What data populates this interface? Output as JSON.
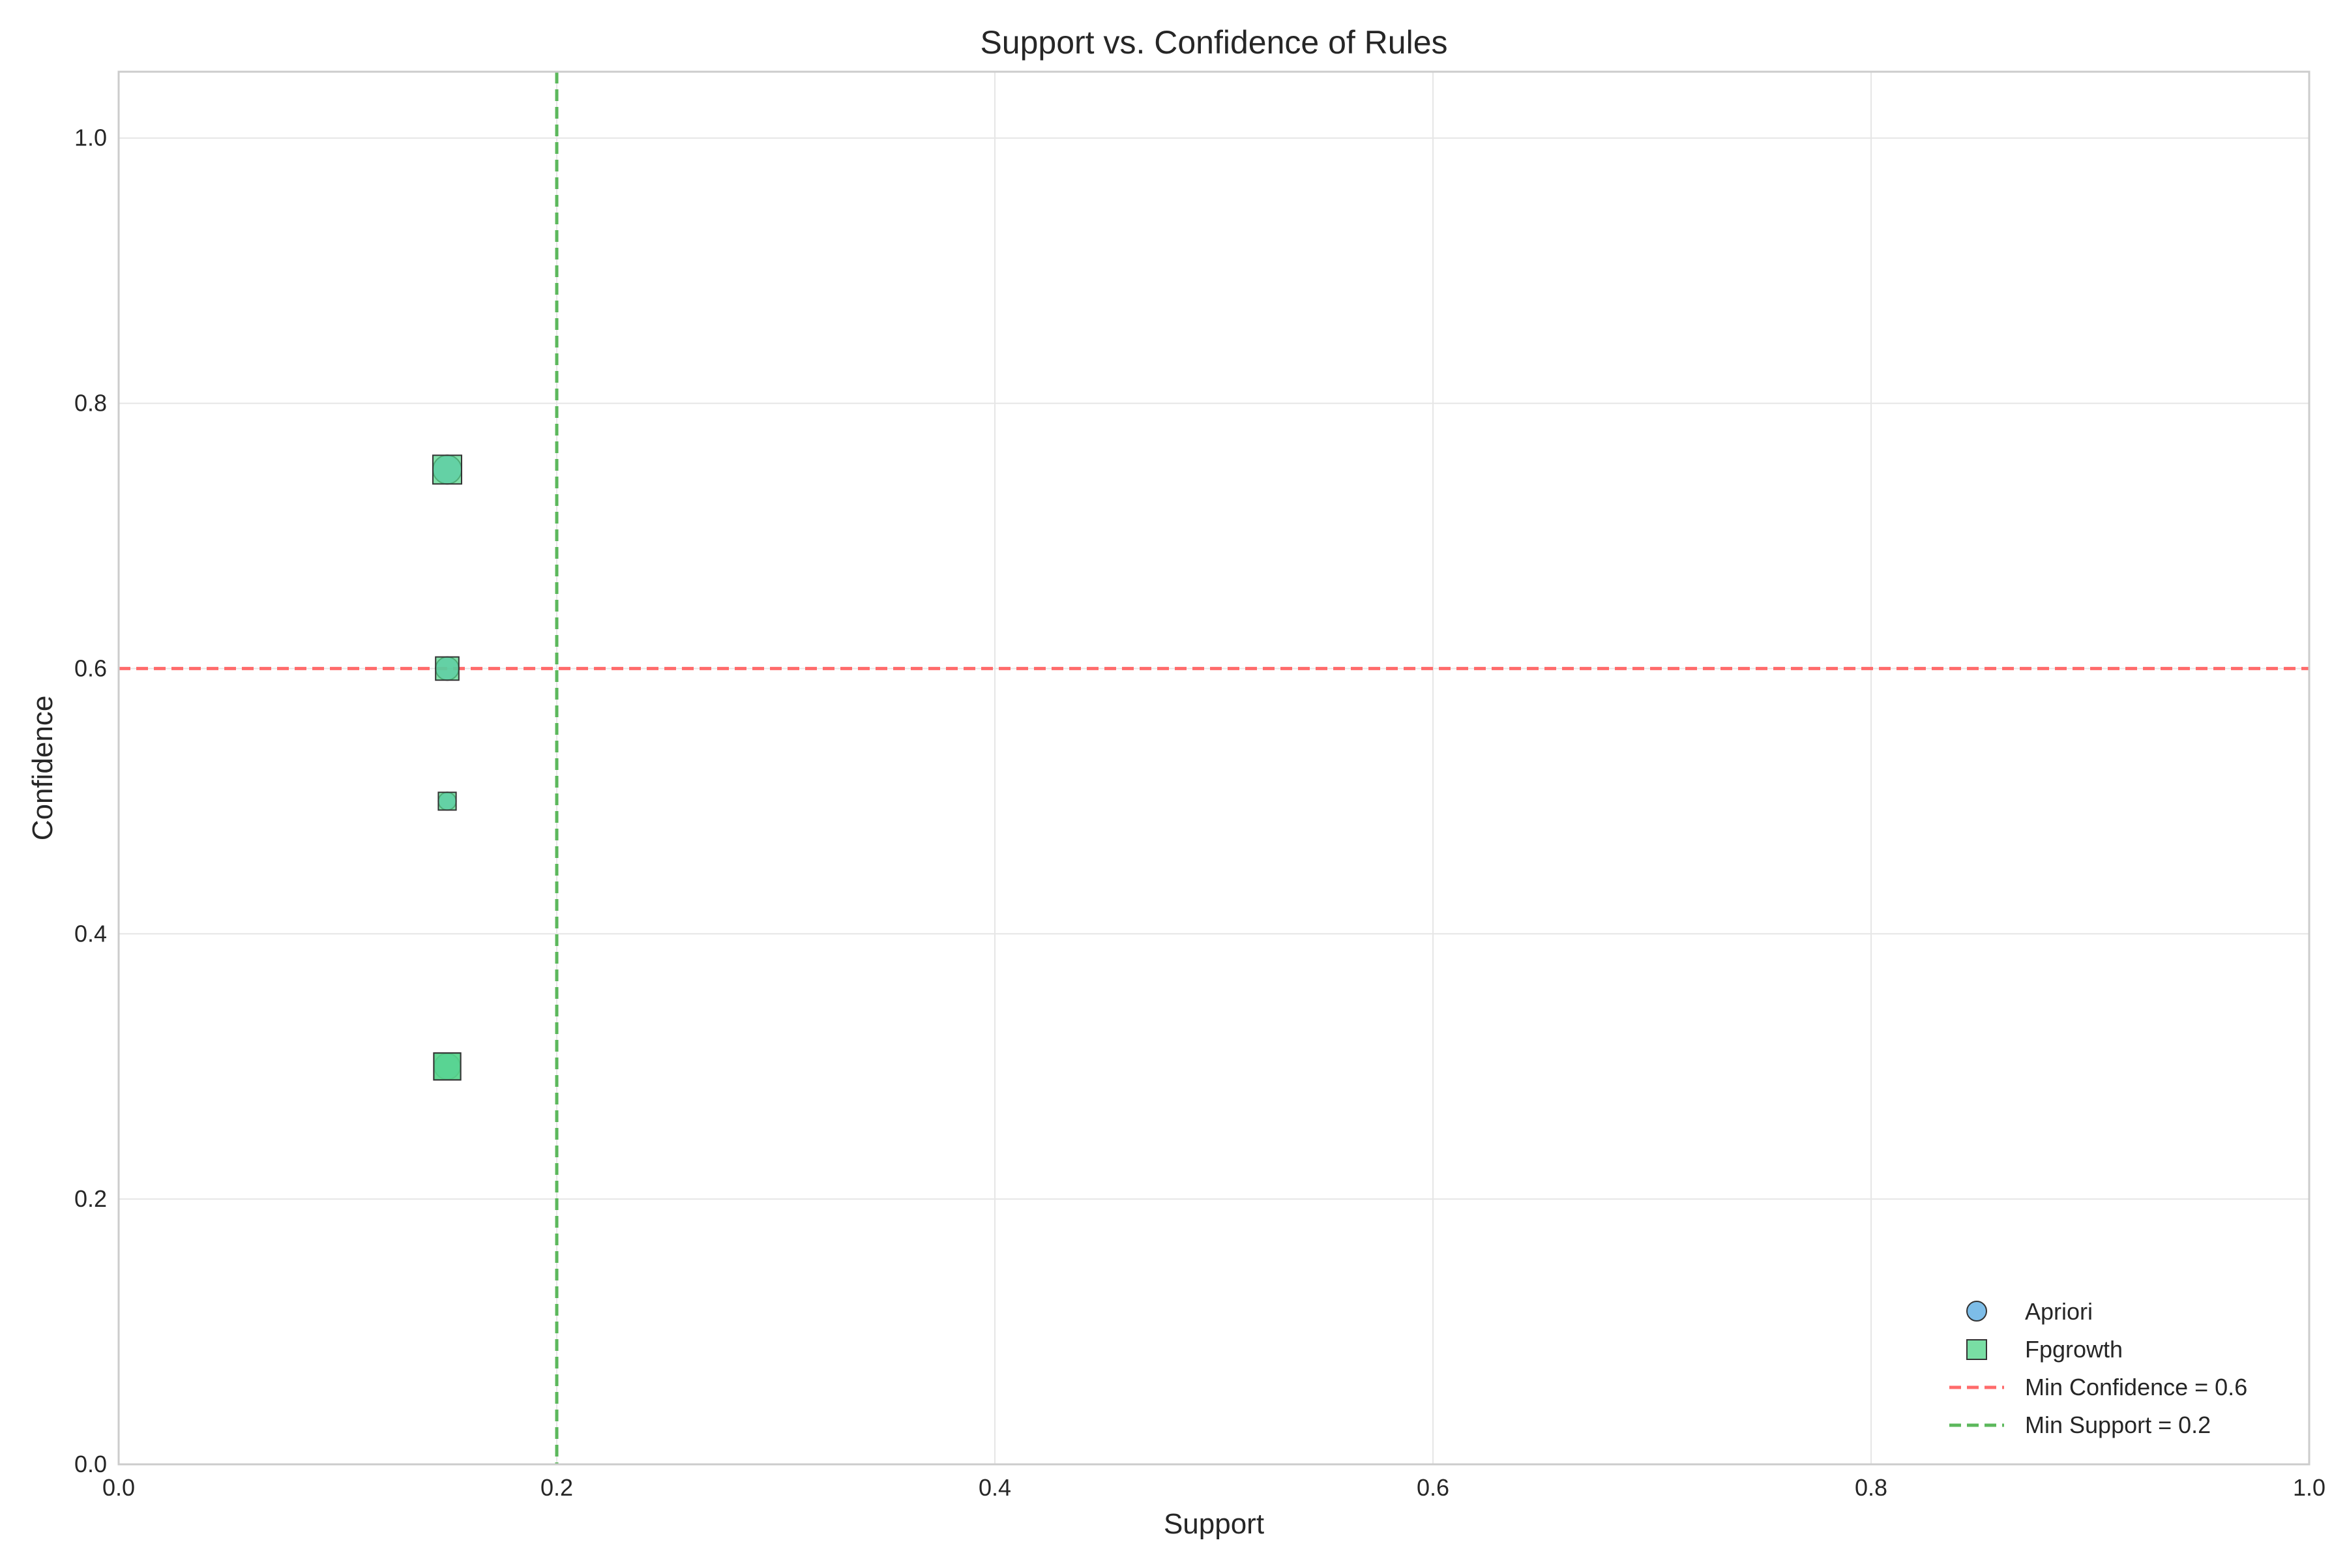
{
  "chart_data": {
    "type": "scatter",
    "title": "Support vs. Confidence of Rules",
    "xlabel": "Support",
    "ylabel": "Confidence",
    "xlim": [
      0.0,
      1.0
    ],
    "ylim": [
      0.0,
      1.05
    ],
    "xticks": [
      "0.0",
      "0.2",
      "0.4",
      "0.6",
      "0.8",
      "1.0"
    ],
    "yticks": [
      "0.0",
      "0.2",
      "0.4",
      "0.6",
      "0.8",
      "1.0"
    ],
    "grid": true,
    "legend_position": "bottom-right",
    "series": [
      {
        "name": "Apriori",
        "marker": "circle",
        "color": "#5dade2",
        "points": [
          {
            "x": 0.15,
            "y": 0.75,
            "size": 1.0
          },
          {
            "x": 0.15,
            "y": 0.6,
            "size": 0.7
          },
          {
            "x": 0.15,
            "y": 0.5,
            "size": 0.4
          },
          {
            "x": 0.15,
            "y": 0.3,
            "size": 0.85
          },
          {
            "x": 0.15,
            "y": 0.3,
            "size": 0.85
          }
        ]
      },
      {
        "name": "Fpgrowth",
        "marker": "square",
        "color": "#58d68d",
        "points": [
          {
            "x": 0.15,
            "y": 0.75,
            "size": 1.0
          },
          {
            "x": 0.15,
            "y": 0.6,
            "size": 0.7
          },
          {
            "x": 0.15,
            "y": 0.5,
            "size": 0.4
          },
          {
            "x": 0.15,
            "y": 0.3,
            "size": 0.9
          },
          {
            "x": 0.15,
            "y": 0.3,
            "size": 0.9
          }
        ]
      }
    ],
    "reference_lines": [
      {
        "name": "Min Confidence = 0.6",
        "orientation": "horizontal",
        "value": 0.6,
        "color": "#ff6b6b",
        "style": "dashed"
      },
      {
        "name": "Min Support = 0.2",
        "orientation": "vertical",
        "value": 0.2,
        "color": "#5cb85c",
        "style": "dashed"
      }
    ]
  }
}
